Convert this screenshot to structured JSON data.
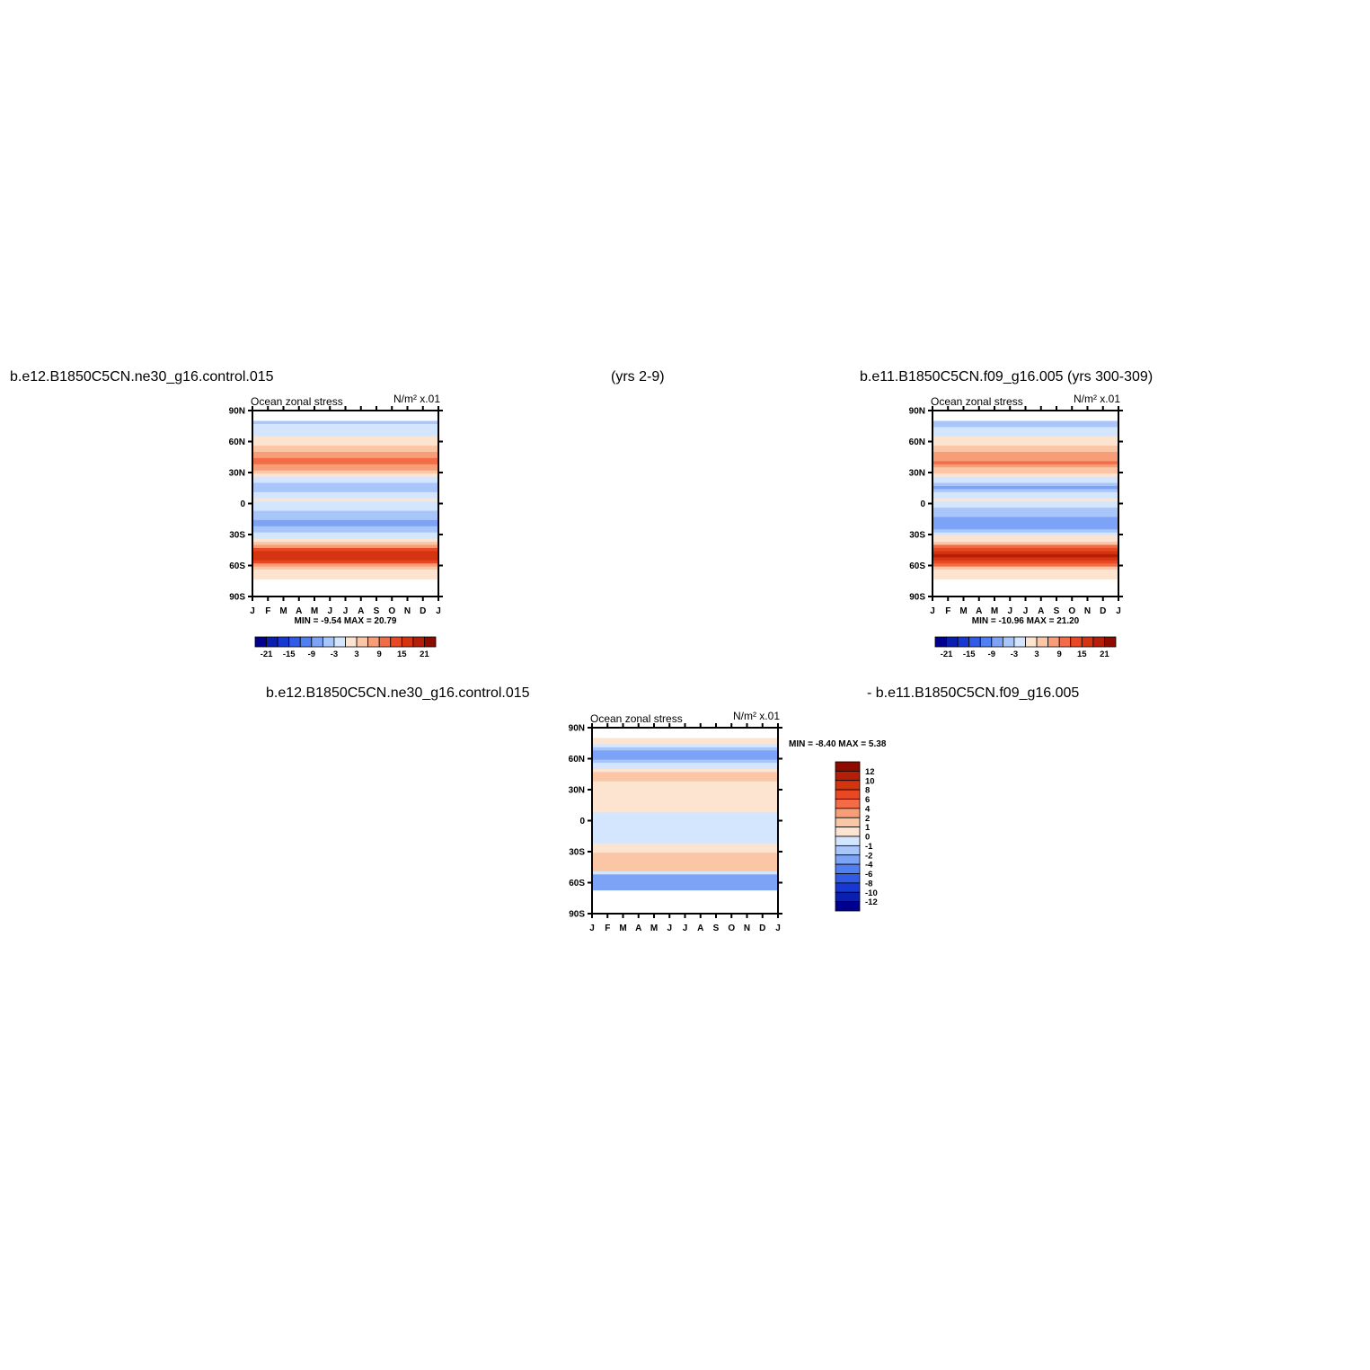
{
  "header": {
    "case1": "b.e12.B1850C5CN.ne30_g16.control.015",
    "years1": "(yrs 2-9)",
    "case2_with_years": "b.e11.B1850C5CN.f09_g16.005 (yrs 300-309)",
    "diff_left": "b.e12.B1850C5CN.ne30_g16.control.015",
    "diff_right": "- b.e11.B1850C5CN.f09_g16.005"
  },
  "colors": {
    "blue": [
      "#00008f",
      "#0a1fae",
      "#1838d2",
      "#2f5be6",
      "#4f7ff0",
      "#7da3f7",
      "#a9c6fb",
      "#d4e6fe"
    ],
    "red": [
      "#fde4d1",
      "#fbc6a6",
      "#f79e78",
      "#f26d47",
      "#e94824",
      "#d53411",
      "#b51e07",
      "#8e0b00"
    ]
  },
  "chart_data": [
    {
      "type": "heatmap",
      "panel": "top-left",
      "title": "Ocean zonal stress",
      "units": "N/m² x.01",
      "x_ticks": [
        "J",
        "F",
        "M",
        "A",
        "M",
        "J",
        "J",
        "A",
        "S",
        "O",
        "N",
        "D",
        "J"
      ],
      "y_ticks": [
        "90N",
        "60N",
        "30N",
        "0",
        "30S",
        "60S",
        "90S"
      ],
      "ylim": [
        -90,
        90
      ],
      "stats": "MIN =  -9.54 MAX =  20.79",
      "colorbar_orientation": "horizontal",
      "colorbar_labels": [
        "-21",
        "-15",
        "-9",
        "-3",
        "3",
        "9",
        "15",
        "21"
      ],
      "zonal_profile": [
        {
          "lat": 77,
          "value": -3
        },
        {
          "lat": 65,
          "value": 0
        },
        {
          "lat": 55,
          "value": 4
        },
        {
          "lat": 40,
          "value": 11
        },
        {
          "lat": 30,
          "value": 4
        },
        {
          "lat": 22,
          "value": -2
        },
        {
          "lat": 15,
          "value": -6
        },
        {
          "lat": 5,
          "value": 0.5
        },
        {
          "lat": 0,
          "value": -1
        },
        {
          "lat": -15,
          "value": -6
        },
        {
          "lat": -20,
          "value": -8
        },
        {
          "lat": -30,
          "value": -2
        },
        {
          "lat": -38,
          "value": 4
        },
        {
          "lat": -45,
          "value": 13
        },
        {
          "lat": -52,
          "value": 19
        },
        {
          "lat": -58,
          "value": 11
        },
        {
          "lat": -65,
          "value": 1
        },
        {
          "lat": -72,
          "value": 0
        }
      ]
    },
    {
      "type": "heatmap",
      "panel": "top-right",
      "title": "Ocean zonal stress",
      "units": "N/m² x.01",
      "x_ticks": [
        "J",
        "F",
        "M",
        "A",
        "M",
        "J",
        "J",
        "A",
        "S",
        "O",
        "N",
        "D",
        "J"
      ],
      "y_ticks": [
        "90N",
        "60N",
        "30N",
        "0",
        "30S",
        "60S",
        "90S"
      ],
      "ylim": [
        -90,
        90
      ],
      "stats": "MIN =  -10.96 MAX =  21.20",
      "colorbar_orientation": "horizontal",
      "colorbar_labels": [
        "-21",
        "-15",
        "-9",
        "-3",
        "3",
        "9",
        "15",
        "21"
      ],
      "zonal_profile": [
        {
          "lat": 77,
          "value": -4
        },
        {
          "lat": 65,
          "value": 0
        },
        {
          "lat": 55,
          "value": 3
        },
        {
          "lat": 40,
          "value": 10
        },
        {
          "lat": 30,
          "value": 3
        },
        {
          "lat": 22,
          "value": -2
        },
        {
          "lat": 15,
          "value": -7
        },
        {
          "lat": 5,
          "value": 0.5
        },
        {
          "lat": 0,
          "value": -1
        },
        {
          "lat": -15,
          "value": -7
        },
        {
          "lat": -20,
          "value": -9
        },
        {
          "lat": -30,
          "value": -2
        },
        {
          "lat": -38,
          "value": 5
        },
        {
          "lat": -45,
          "value": 14
        },
        {
          "lat": -52,
          "value": 20
        },
        {
          "lat": -58,
          "value": 12
        },
        {
          "lat": -65,
          "value": 1
        },
        {
          "lat": -72,
          "value": 0
        }
      ]
    },
    {
      "type": "heatmap",
      "panel": "bottom-center",
      "title": "Ocean zonal stress",
      "units": "N/m² x.01",
      "x_ticks": [
        "J",
        "F",
        "M",
        "A",
        "M",
        "J",
        "J",
        "A",
        "S",
        "O",
        "N",
        "D",
        "J"
      ],
      "y_ticks": [
        "90N",
        "60N",
        "30N",
        "0",
        "30S",
        "60S",
        "90S"
      ],
      "ylim": [
        -90,
        90
      ],
      "stats": "MIN =  -8.40 MAX =   5.38",
      "colorbar_orientation": "vertical",
      "colorbar_labels": [
        "12",
        "10",
        "8",
        "6",
        "4",
        "2",
        "1",
        "0",
        "-1",
        "-2",
        "-4",
        "-6",
        "-8",
        "-10",
        "-12"
      ],
      "zonal_profile": [
        {
          "lat": 77,
          "value": 0.5
        },
        {
          "lat": 65,
          "value": -3
        },
        {
          "lat": 55,
          "value": -1
        },
        {
          "lat": 45,
          "value": 1.5
        },
        {
          "lat": 30,
          "value": 0.5
        },
        {
          "lat": 15,
          "value": 0.5
        },
        {
          "lat": 0,
          "value": -0.5
        },
        {
          "lat": -15,
          "value": -0.5
        },
        {
          "lat": -28,
          "value": 0.5
        },
        {
          "lat": -40,
          "value": 2
        },
        {
          "lat": -48,
          "value": 1
        },
        {
          "lat": -55,
          "value": -3
        },
        {
          "lat": -62,
          "value": -4
        },
        {
          "lat": -68,
          "value": -1
        }
      ]
    }
  ]
}
